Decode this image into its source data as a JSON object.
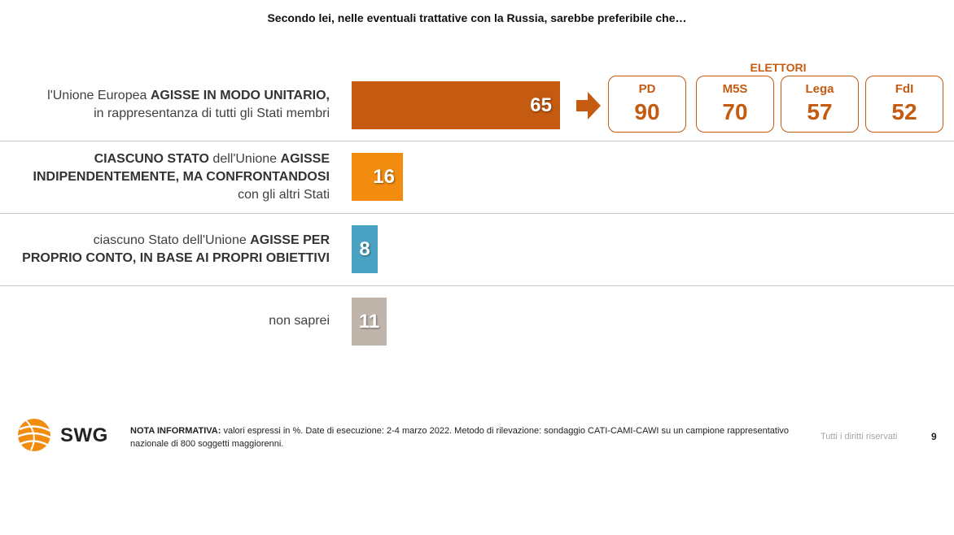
{
  "title": "Secondo lei, nelle eventuali trattative con la Russia, sarebbe preferibile che…",
  "chart_data": {
    "type": "bar",
    "orientation": "horizontal",
    "title": "Secondo lei, nelle eventuali trattative con la Russia, sarebbe preferibile che…",
    "xlim": [
      0,
      100
    ],
    "grid": false,
    "categories": [
      "l'Unione Europea AGISSE IN MODO UNITARIO, in rappresentanza di tutti gli Stati membri",
      "CIASCUNO STATO dell'Unione AGISSE INDIPENDENTEMENTE, MA CONFRONTANDOSI con gli altri Stati",
      "ciascuno Stato dell'Unione AGISSE PER PROPRIO CONTO, IN BASE AI PROPRI OBIETTIVI",
      "non saprei"
    ],
    "values": [
      65,
      16,
      8,
      11
    ],
    "colors": [
      "#c55a11",
      "#f28c0f",
      "#4ba3c3",
      "#bfb5aa"
    ],
    "labels": [
      [
        {
          "t": "l'Unione Europea ",
          "b": false
        },
        {
          "t": "AGISSE IN MODO UNITARIO,",
          "b": true
        },
        {
          "br": true
        },
        {
          "t": "in rappresentanza di tutti gli Stati membri",
          "b": false
        }
      ],
      [
        {
          "t": "CIASCUNO STATO",
          "b": true
        },
        {
          "t": " dell'Unione ",
          "b": false
        },
        {
          "t": "AGISSE",
          "b": true
        },
        {
          "br": true
        },
        {
          "t": "INDIPENDENTEMENTE, MA CONFRONTANDOSI",
          "b": true
        },
        {
          "br": true
        },
        {
          "t": "con gli altri Stati",
          "b": false
        }
      ],
      [
        {
          "t": "ciascuno Stato dell'Unione ",
          "b": false
        },
        {
          "t": "AGISSE PER",
          "b": true
        },
        {
          "br": true
        },
        {
          "t": "PROPRIO CONTO, IN BASE AI PROPRI OBIETTIVI",
          "b": true
        }
      ],
      [
        {
          "t": "non saprei",
          "b": false
        }
      ]
    ]
  },
  "electors": {
    "title": "ELETTORI",
    "color": "#c55a11",
    "parties": [
      {
        "name": "PD",
        "value": "90"
      },
      {
        "name": "M5S",
        "value": "70"
      },
      {
        "name": "Lega",
        "value": "57"
      },
      {
        "name": "FdI",
        "value": "52"
      }
    ]
  },
  "footer": {
    "logo_text": "SWG",
    "note_label": "NOTA INFORMATIVA:",
    "note_text": " valori espressi in %. Date di esecuzione: 2-4 marzo 2022. Metodo di rilevazione: sondaggio CATI-CAMI-CAWI su un campione rappresentativo nazionale di 800 soggetti maggiorenni.",
    "rights": "Tutti i diritti riservati",
    "page_number": "9"
  }
}
